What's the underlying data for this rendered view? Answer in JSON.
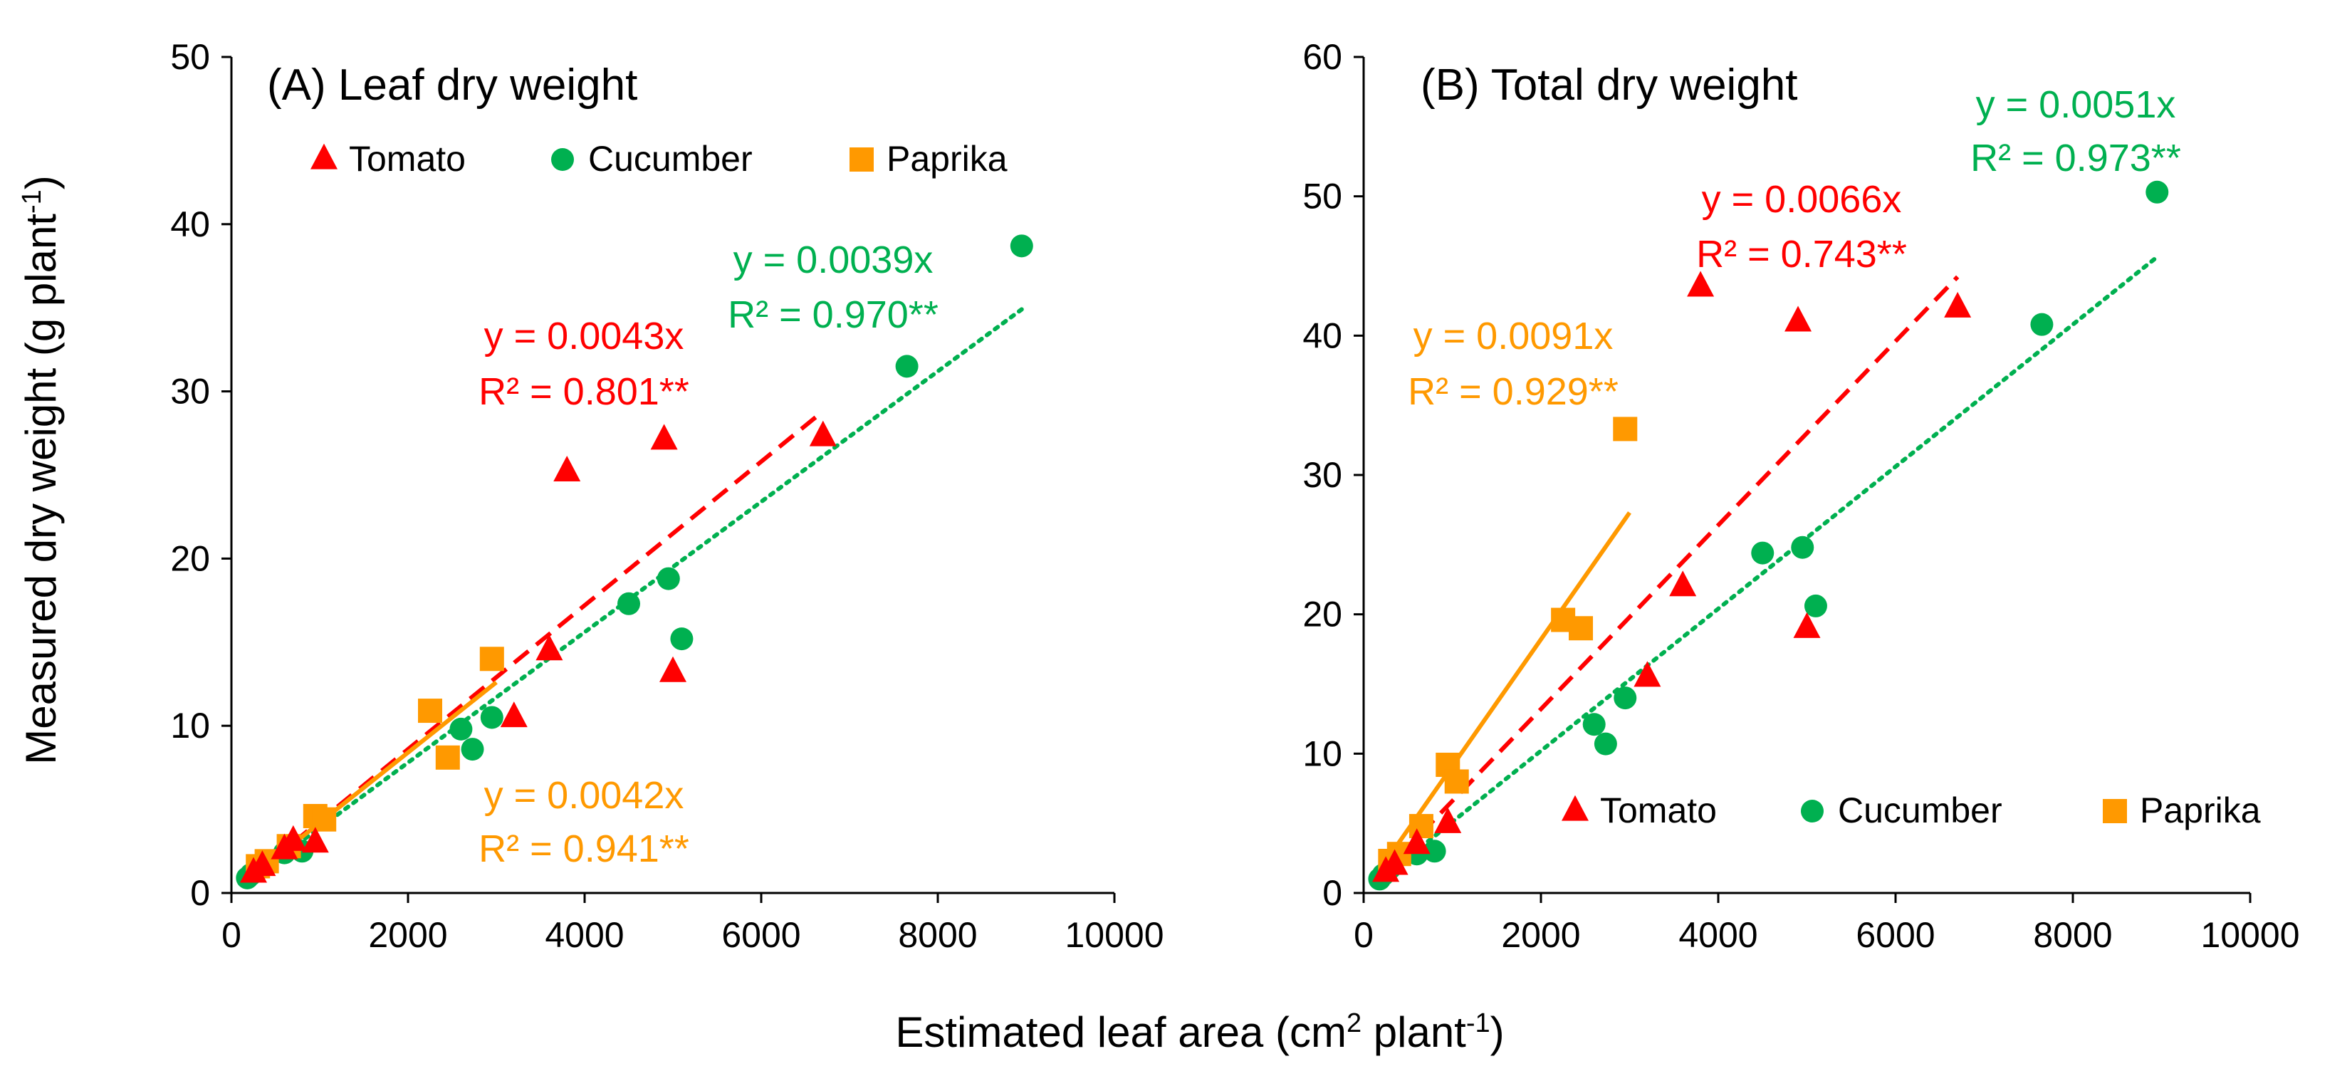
{
  "figure": {
    "xlabel_main": "Estimated leaf area (cm",
    "xlabel_sup1": "2",
    "xlabel_mid": " plant",
    "xlabel_sup2": "-1",
    "xlabel_end": ")",
    "ylabel_main": "Measured dry weight (g plant",
    "ylabel_sup": "-1",
    "ylabel_end": ")"
  },
  "colors": {
    "tomato": "#ff0000",
    "cucumber": "#00b050",
    "paprika": "#ff9900"
  },
  "chart_data": [
    {
      "type": "scatter",
      "id": "A",
      "title": "(A) Leaf dry weight",
      "xlim": [
        0,
        10000
      ],
      "ylim": [
        0,
        50
      ],
      "xticks": [
        0,
        2000,
        4000,
        6000,
        8000,
        10000
      ],
      "yticks": [
        0,
        10,
        20,
        30,
        40,
        50
      ],
      "legend_position": "top",
      "series": [
        {
          "name": "Tomato",
          "key": "tomato",
          "marker": "triangle",
          "slope": 0.0043,
          "fit_range": [
            200,
            6700
          ],
          "fit_style": "dashed",
          "equation": "y = 0.0043x",
          "r2": "R² = 0.801**",
          "points": [
            [
              250,
              1.2
            ],
            [
              350,
              1.6
            ],
            [
              600,
              2.6
            ],
            [
              700,
              3.1
            ],
            [
              950,
              3.0
            ],
            [
              3200,
              10.5
            ],
            [
              3600,
              14.5
            ],
            [
              3800,
              25.2
            ],
            [
              4900,
              27.1
            ],
            [
              5000,
              13.2
            ],
            [
              6700,
              27.3
            ]
          ]
        },
        {
          "name": "Cucumber",
          "key": "cucumber",
          "marker": "circle",
          "slope": 0.0039,
          "fit_range": [
            200,
            8950
          ],
          "fit_style": "dotted",
          "equation": "y = 0.0039x",
          "r2": "R² = 0.970**",
          "points": [
            [
              180,
              0.9
            ],
            [
              220,
              1.1
            ],
            [
              300,
              1.4
            ],
            [
              600,
              2.4
            ],
            [
              800,
              2.5
            ],
            [
              2600,
              9.8
            ],
            [
              2730,
              8.6
            ],
            [
              2950,
              10.5
            ],
            [
              4500,
              17.3
            ],
            [
              4950,
              18.8
            ],
            [
              5100,
              15.2
            ],
            [
              7650,
              31.5
            ],
            [
              8950,
              38.7
            ]
          ]
        },
        {
          "name": "Paprika",
          "key": "paprika",
          "marker": "square",
          "slope": 0.0042,
          "fit_range": [
            200,
            3000
          ],
          "fit_style": "solid",
          "equation": "y = 0.0042x",
          "r2": "R² = 0.941**",
          "points": [
            [
              300,
              1.6
            ],
            [
              400,
              1.9
            ],
            [
              650,
              2.8
            ],
            [
              950,
              4.6
            ],
            [
              1050,
              4.4
            ],
            [
              2250,
              10.9
            ],
            [
              2450,
              8.1
            ],
            [
              2950,
              14.0
            ]
          ]
        }
      ]
    },
    {
      "type": "scatter",
      "id": "B",
      "title": "(B) Total dry weight",
      "xlim": [
        0,
        10000
      ],
      "ylim": [
        0,
        60
      ],
      "xticks": [
        0,
        2000,
        4000,
        6000,
        8000,
        10000
      ],
      "yticks": [
        0,
        10,
        20,
        30,
        40,
        50,
        60
      ],
      "legend_position": "bottom",
      "series": [
        {
          "name": "Tomato",
          "key": "tomato",
          "marker": "triangle",
          "slope": 0.0066,
          "fit_range": [
            200,
            6700
          ],
          "fit_style": "dashed",
          "equation": "y = 0.0066x",
          "r2": "R² = 0.743**",
          "points": [
            [
              250,
              1.5
            ],
            [
              350,
              2.0
            ],
            [
              600,
              3.5
            ],
            [
              950,
              5.0
            ],
            [
              3200,
              15.5
            ],
            [
              3600,
              22.0
            ],
            [
              3800,
              43.5
            ],
            [
              4900,
              41.0
            ],
            [
              5000,
              19.0
            ],
            [
              6700,
              42.0
            ]
          ]
        },
        {
          "name": "Cucumber",
          "key": "cucumber",
          "marker": "circle",
          "slope": 0.0051,
          "fit_range": [
            200,
            8950
          ],
          "fit_style": "dotted",
          "equation": "y = 0.0051x",
          "r2": "R² = 0.973**",
          "points": [
            [
              180,
              1.0
            ],
            [
              220,
              1.3
            ],
            [
              300,
              1.8
            ],
            [
              600,
              2.8
            ],
            [
              800,
              3.0
            ],
            [
              2600,
              12.1
            ],
            [
              2730,
              10.7
            ],
            [
              2950,
              14.0
            ],
            [
              4500,
              24.4
            ],
            [
              4950,
              24.8
            ],
            [
              5100,
              20.6
            ],
            [
              7650,
              40.8
            ],
            [
              8950,
              50.3
            ]
          ]
        },
        {
          "name": "Paprika",
          "key": "paprika",
          "marker": "square",
          "slope": 0.0091,
          "fit_range": [
            200,
            3000
          ],
          "fit_style": "solid",
          "equation": "y = 0.0091x",
          "r2": "R² = 0.929**",
          "points": [
            [
              300,
              2.3
            ],
            [
              400,
              2.8
            ],
            [
              650,
              4.8
            ],
            [
              950,
              9.2
            ],
            [
              1050,
              8.0
            ],
            [
              2250,
              19.6
            ],
            [
              2450,
              19.0
            ],
            [
              2950,
              33.3
            ]
          ]
        }
      ]
    }
  ]
}
